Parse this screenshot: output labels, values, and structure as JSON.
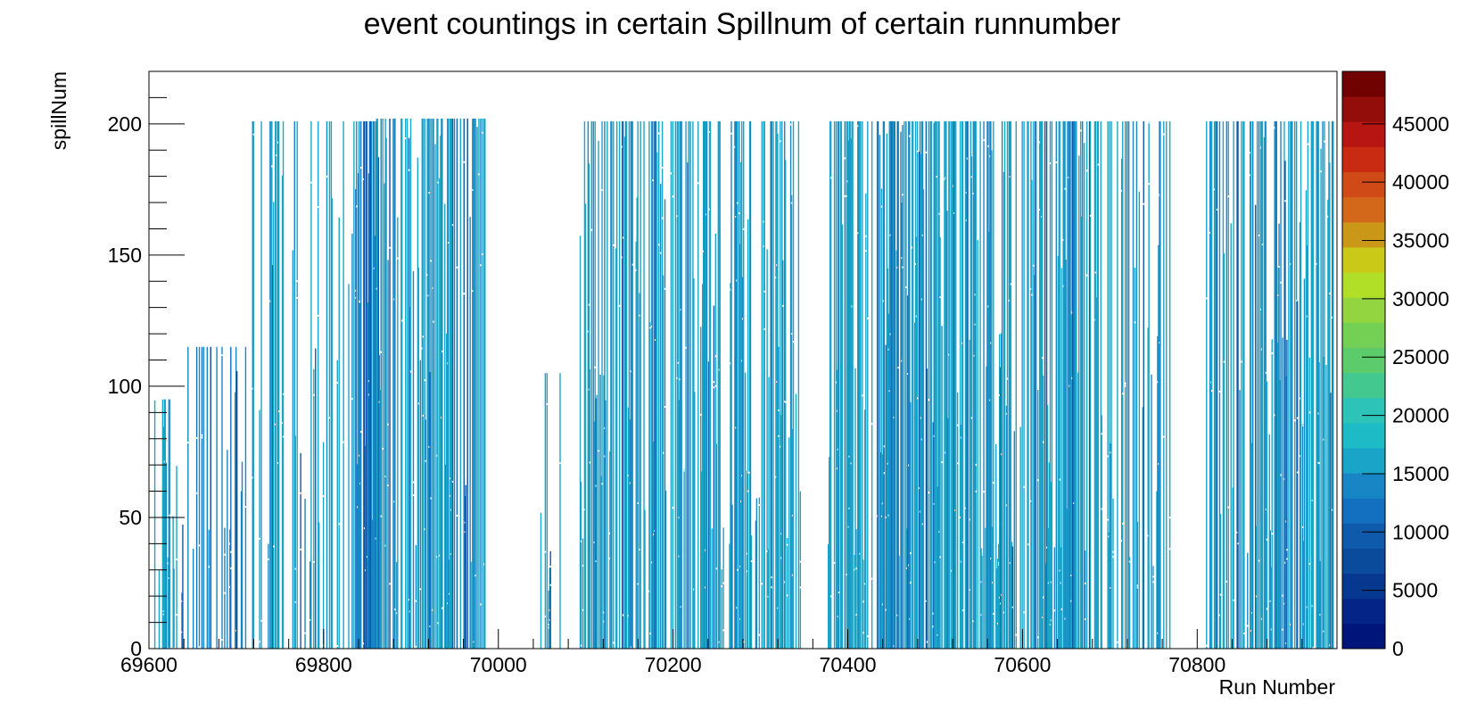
{
  "chart_data": {
    "type": "heatmap",
    "title": "event countings in certain Spillnum of certain runnumber",
    "xlabel": "Run Number",
    "ylabel": "spillNum",
    "xlim": [
      69600,
      70960
    ],
    "ylim": [
      0,
      220
    ],
    "x_ticks": [
      69600,
      69800,
      70000,
      70200,
      70400,
      70600,
      70800
    ],
    "y_ticks": [
      0,
      50,
      100,
      150,
      200
    ],
    "z_range": [
      0,
      49500
    ],
    "z_ticks": [
      "0",
      "5000",
      "10000",
      "15000",
      "20000",
      "25000",
      "30000",
      "35000",
      "40000",
      "45000"
    ],
    "palette": [
      "#00157a",
      "#042587",
      "#073890",
      "#0a4b9c",
      "#0f5aaa",
      "#1370c0",
      "#1886c4",
      "#1aa5c8",
      "#1dbbc6",
      "#2ec3b8",
      "#43c990",
      "#5ccb6b",
      "#74cf55",
      "#93d540",
      "#b1df28",
      "#cbc918",
      "#cb9718",
      "#d4681a",
      "#cf4a16",
      "#c92a12",
      "#b71512",
      "#930e0b",
      "#700202"
    ],
    "grid": false,
    "legend": "colorbar-right",
    "run_segments": [
      {
        "from": 69605,
        "to": 69640,
        "max_spill": 95,
        "density": 0.55,
        "z_level": 7
      },
      {
        "from": 69640,
        "to": 69710,
        "max_spill": 115,
        "density": 0.35,
        "z_level": 6
      },
      {
        "from": 69710,
        "to": 69770,
        "max_spill": 201,
        "density": 0.35,
        "z_level": 7
      },
      {
        "from": 69770,
        "to": 69835,
        "max_spill": 201,
        "density": 0.3,
        "z_level": 7
      },
      {
        "from": 69835,
        "to": 69860,
        "max_spill": 201,
        "density": 0.8,
        "z_level": 6
      },
      {
        "from": 69860,
        "to": 69985,
        "max_spill": 202,
        "density": 0.6,
        "z_level": 7
      },
      {
        "from": 70045,
        "to": 70075,
        "max_spill": 105,
        "density": 0.2,
        "z_level": 7
      },
      {
        "from": 70090,
        "to": 70130,
        "max_spill": 201,
        "density": 0.45,
        "z_level": 7
      },
      {
        "from": 70130,
        "to": 70200,
        "max_spill": 201,
        "density": 0.55,
        "z_level": 7
      },
      {
        "from": 70200,
        "to": 70345,
        "max_spill": 201,
        "density": 0.65,
        "z_level": 7
      },
      {
        "from": 70375,
        "to": 70470,
        "max_spill": 201,
        "density": 0.7,
        "z_level": 7
      },
      {
        "from": 70470,
        "to": 70575,
        "max_spill": 201,
        "density": 0.75,
        "z_level": 7
      },
      {
        "from": 70575,
        "to": 70690,
        "max_spill": 201,
        "density": 0.65,
        "z_level": 7
      },
      {
        "from": 70690,
        "to": 70770,
        "max_spill": 201,
        "density": 0.35,
        "z_level": 7
      },
      {
        "from": 70810,
        "to": 70870,
        "max_spill": 201,
        "density": 0.6,
        "z_level": 7
      },
      {
        "from": 70870,
        "to": 70955,
        "max_spill": 201,
        "density": 0.7,
        "z_level": 7
      }
    ]
  }
}
